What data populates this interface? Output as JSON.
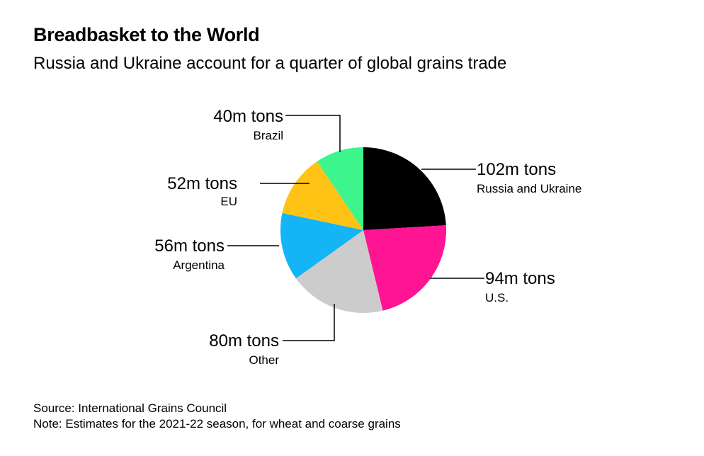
{
  "title": "Breadbasket to the World",
  "subtitle": "Russia and Ukraine account for a quarter of global grains trade",
  "chart_data": {
    "type": "pie",
    "unit": "m tons",
    "start_angle_deg": 0,
    "direction": "clockwise",
    "slices": [
      {
        "label": "Russia and Ukraine",
        "value": 102,
        "value_label": "102m tons",
        "color": "#000000"
      },
      {
        "label": "U.S.",
        "value": 94,
        "value_label": "94m tons",
        "color": "#ff1493"
      },
      {
        "label": "Other",
        "value": 80,
        "value_label": "80m tons",
        "color": "#cccccc"
      },
      {
        "label": "Argentina",
        "value": 56,
        "value_label": "56m tons",
        "color": "#14b4f5"
      },
      {
        "label": "EU",
        "value": 52,
        "value_label": "52m tons",
        "color": "#fec314"
      },
      {
        "label": "Brazil",
        "value": 40,
        "value_label": "40m tons",
        "color": "#3cf58c"
      }
    ]
  },
  "footer": {
    "source": "Source: International Grains Council",
    "note": "Note: Estimates for the 2021-22 season, for wheat and coarse grains"
  }
}
